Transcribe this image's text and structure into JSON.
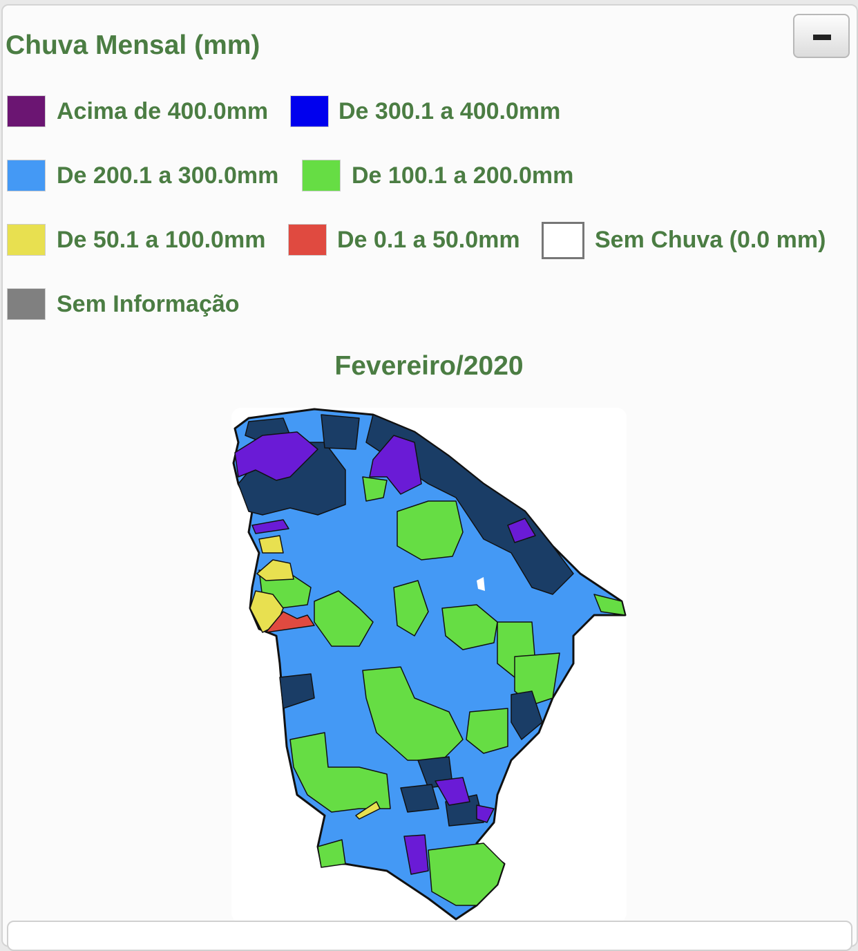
{
  "header": {
    "title": "Chuva Mensal (mm)"
  },
  "legend": [
    {
      "label": "Acima de 400.0mm",
      "color": "#6b1572"
    },
    {
      "label": "De 300.1 a 400.0mm",
      "color": "#0000ee"
    },
    {
      "label": "De 200.1 a 300.0mm",
      "color": "#4499f5"
    },
    {
      "label": "De 100.1 a 200.0mm",
      "color": "#66dd44"
    },
    {
      "label": "De 50.1 a 100.0mm",
      "color": "#e8e050"
    },
    {
      "label": "De 0.1 a 50.0mm",
      "color": "#e04a40"
    },
    {
      "label": "Sem Chuva (0.0 mm)",
      "color": "#ffffff"
    },
    {
      "label": "Sem Informação",
      "color": "#808080"
    }
  ],
  "map": {
    "title": "Fevereiro/2020"
  }
}
